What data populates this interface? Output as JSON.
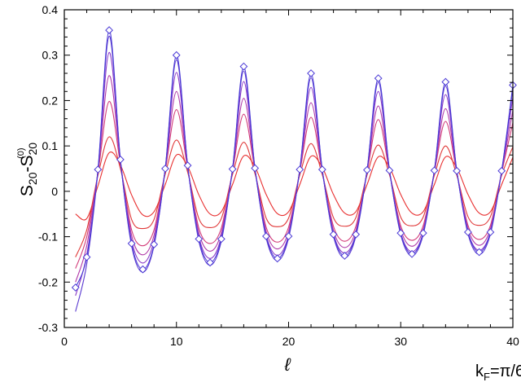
{
  "chart_data": {
    "type": "line",
    "xlabel": "ℓ",
    "ylabel": {
      "main": "S",
      "sub1": "20",
      "mid": "-S",
      "sub2": "20",
      "sup2": "(0)"
    },
    "annotation": {
      "main": "k",
      "sub": "F",
      "rest": "=π/6"
    },
    "xlim": [
      0,
      40
    ],
    "ylim": [
      -0.3,
      0.4
    ],
    "xticks": [
      0,
      10,
      20,
      30,
      40
    ],
    "yticks": [
      -0.3,
      -0.2,
      -0.1,
      0,
      0.1,
      0.2,
      0.3,
      0.4
    ],
    "ytick_labels": [
      "-0.3",
      "-0.2",
      "-0.1",
      "0",
      "0.1",
      "0.2",
      "0.3",
      "0.4"
    ],
    "grid": false,
    "legend": "none",
    "x": [
      1,
      2,
      3,
      4,
      5,
      6,
      7,
      8,
      9,
      10,
      11,
      12,
      13,
      14,
      15,
      16,
      17,
      18,
      19,
      20,
      21,
      22,
      23,
      24,
      25,
      26,
      27,
      28,
      29,
      30,
      31,
      32,
      33,
      34,
      35,
      36,
      37,
      38,
      39,
      40
    ],
    "series": [
      {
        "color": "#4b3ad6",
        "markers": true,
        "values": [
          -0.212,
          -0.145,
          0.048,
          0.355,
          0.07,
          -0.115,
          -0.172,
          -0.117,
          0.05,
          0.3,
          0.057,
          -0.105,
          -0.157,
          -0.105,
          0.049,
          0.275,
          0.051,
          -0.099,
          -0.148,
          -0.099,
          0.048,
          0.26,
          0.048,
          -0.095,
          -0.142,
          -0.095,
          0.047,
          0.249,
          0.046,
          -0.092,
          -0.138,
          -0.092,
          0.046,
          0.241,
          0.045,
          -0.09,
          -0.134,
          -0.09,
          0.045,
          0.234
        ]
      },
      {
        "color": "#5a3ad0",
        "markers": false,
        "values": [
          -0.265,
          -0.16,
          0.045,
          0.342,
          0.07,
          -0.12,
          -0.178,
          -0.12,
          0.05,
          0.29,
          0.057,
          -0.11,
          -0.163,
          -0.11,
          0.049,
          0.265,
          0.051,
          -0.103,
          -0.153,
          -0.103,
          0.048,
          0.25,
          0.048,
          -0.099,
          -0.147,
          -0.099,
          0.047,
          0.24,
          0.046,
          -0.096,
          -0.142,
          -0.096,
          0.046,
          0.232,
          0.045,
          -0.094,
          -0.139,
          -0.094,
          0.045,
          0.226
        ]
      },
      {
        "color": "#8a3ac8",
        "markers": false,
        "values": [
          -0.23,
          -0.14,
          0.045,
          0.306,
          0.068,
          -0.108,
          -0.158,
          -0.108,
          0.049,
          0.262,
          0.055,
          -0.1,
          -0.148,
          -0.1,
          0.048,
          0.242,
          0.05,
          -0.096,
          -0.141,
          -0.096,
          0.047,
          0.229,
          0.047,
          -0.093,
          -0.136,
          -0.093,
          0.046,
          0.22,
          0.045,
          -0.091,
          -0.133,
          -0.091,
          0.045,
          0.213,
          0.044,
          -0.089,
          -0.13,
          -0.089,
          0.044,
          0.207
        ]
      },
      {
        "color": "#b03aa8",
        "markers": false,
        "values": [
          -0.2,
          -0.12,
          0.043,
          0.255,
          0.065,
          -0.097,
          -0.14,
          -0.097,
          0.048,
          0.22,
          0.053,
          -0.091,
          -0.132,
          -0.091,
          0.047,
          0.205,
          0.049,
          -0.088,
          -0.127,
          -0.088,
          0.046,
          0.195,
          0.046,
          -0.086,
          -0.124,
          -0.086,
          0.045,
          0.188,
          0.044,
          -0.084,
          -0.121,
          -0.084,
          0.044,
          0.182,
          0.043,
          -0.082,
          -0.119,
          -0.082,
          0.043,
          0.178
        ]
      },
      {
        "color": "#d23a78",
        "markers": false,
        "values": [
          -0.17,
          -0.1,
          0.04,
          0.198,
          0.06,
          -0.085,
          -0.12,
          -0.085,
          0.045,
          0.18,
          0.05,
          -0.081,
          -0.115,
          -0.081,
          0.044,
          0.17,
          0.046,
          -0.079,
          -0.112,
          -0.079,
          0.043,
          0.163,
          0.043,
          -0.077,
          -0.11,
          -0.077,
          0.042,
          0.158,
          0.042,
          -0.076,
          -0.108,
          -0.076,
          0.042,
          0.154,
          0.041,
          -0.075,
          -0.106,
          -0.075,
          0.041,
          0.151
        ]
      },
      {
        "color": "#e03838",
        "markers": false,
        "values": [
          -0.145,
          -0.085,
          0.035,
          0.12,
          0.05,
          -0.062,
          -0.082,
          -0.062,
          0.038,
          0.113,
          0.042,
          -0.06,
          -0.08,
          -0.06,
          0.037,
          0.108,
          0.039,
          -0.059,
          -0.078,
          -0.059,
          0.036,
          0.105,
          0.037,
          -0.058,
          -0.077,
          -0.058,
          0.036,
          0.102,
          0.036,
          -0.057,
          -0.076,
          -0.057,
          0.035,
          0.1,
          0.035,
          -0.056,
          -0.075,
          -0.056,
          0.035,
          0.098
        ]
      },
      {
        "color": "#e83030",
        "markers": false,
        "values": [
          -0.05,
          -0.06,
          0.012,
          0.085,
          0.058,
          -0.008,
          -0.052,
          -0.045,
          0.015,
          0.08,
          0.055,
          -0.008,
          -0.05,
          -0.045,
          0.015,
          0.078,
          0.054,
          -0.007,
          -0.049,
          -0.045,
          0.015,
          0.077,
          0.053,
          -0.007,
          -0.048,
          -0.045,
          0.015,
          0.076,
          0.053,
          -0.007,
          -0.048,
          -0.045,
          0.015,
          0.076,
          0.052,
          -0.007,
          -0.048,
          -0.045,
          0.015,
          0.075
        ]
      }
    ]
  }
}
